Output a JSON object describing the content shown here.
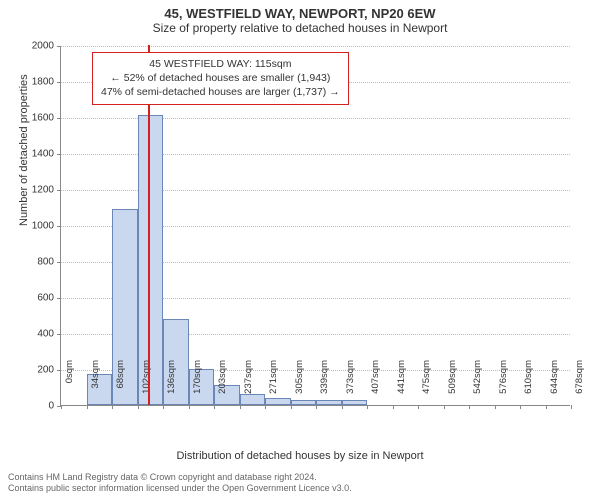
{
  "title": "45, WESTFIELD WAY, NEWPORT, NP20 6EW",
  "subtitle": "Size of property relative to detached houses in Newport",
  "ylabel": "Number of detached properties",
  "xlabel": "Distribution of detached houses by size in Newport",
  "chart": {
    "type": "histogram",
    "background_color": "#ffffff",
    "grid_color": "#bdbdbd",
    "axis_color": "#888888",
    "bar_fill": "#c9d8ef",
    "bar_stroke": "#6a87b8",
    "ref_line_color": "#d62020",
    "ylim": [
      0,
      2000
    ],
    "yticks": [
      0,
      200,
      400,
      600,
      800,
      1000,
      1200,
      1400,
      1600,
      1800,
      2000
    ],
    "xtick_labels": [
      "0sqm",
      "34sqm",
      "68sqm",
      "102sqm",
      "136sqm",
      "170sqm",
      "203sqm",
      "237sqm",
      "271sqm",
      "305sqm",
      "339sqm",
      "373sqm",
      "407sqm",
      "441sqm",
      "475sqm",
      "509sqm",
      "542sqm",
      "576sqm",
      "610sqm",
      "644sqm",
      "678sqm"
    ],
    "bar_values": [
      0,
      170,
      1090,
      1610,
      480,
      200,
      110,
      60,
      40,
      30,
      30,
      30,
      0,
      0,
      0,
      0,
      0,
      0,
      0,
      0
    ],
    "ref_line_x_sqm": 115,
    "x_max_sqm": 678
  },
  "annotation": {
    "line1": "45 WESTFIELD WAY: 115sqm",
    "line2": "← 52% of detached houses are smaller (1,943)",
    "line3": "47% of semi-detached houses are larger (1,737) →",
    "border_color": "#d62020",
    "fontsize": 10.5
  },
  "footer": {
    "line1": "Contains HM Land Registry data © Crown copyright and database right 2024.",
    "line2": "Contains public sector information licensed under the Open Government Licence v3.0."
  },
  "fonts": {
    "title_size": 13,
    "subtitle_size": 12,
    "axis_label_size": 11,
    "tick_size": 10
  }
}
